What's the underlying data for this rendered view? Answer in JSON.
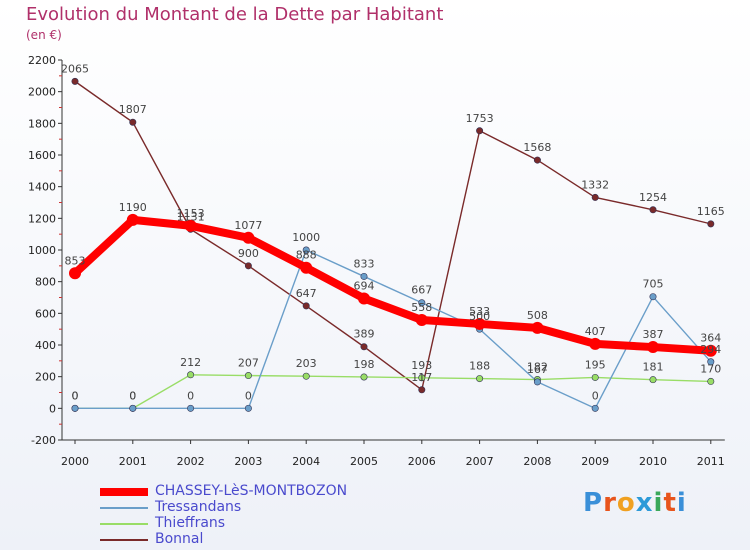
{
  "title": "Evolution du Montant de la Dette par Habitant",
  "subtitle": "(en €)",
  "logo": "Proxiti",
  "chart_data": {
    "type": "line",
    "categories": [
      "2000",
      "2001",
      "2002",
      "2003",
      "2004",
      "2005",
      "2006",
      "2007",
      "2008",
      "2009",
      "2010",
      "2011"
    ],
    "ylim": [
      -200,
      2200
    ],
    "yticks": [
      -200,
      0,
      200,
      400,
      600,
      800,
      1000,
      1200,
      1400,
      1600,
      1800,
      2000,
      2200
    ],
    "grid": false,
    "legend_position": "bottom-left",
    "series": [
      {
        "name": "CHASSEY-LèS-MONTBOZON",
        "color": "#ff0000",
        "values": [
          853,
          1190,
          1153,
          1077,
          888,
          694,
          558,
          533,
          508,
          407,
          387,
          364
        ]
      },
      {
        "name": "Tressandans",
        "color": "#6a9ec9",
        "values": [
          0,
          0,
          0,
          0,
          1000,
          833,
          667,
          500,
          167,
          0,
          705,
          294
        ]
      },
      {
        "name": "Thieffrans",
        "color": "#99dd66",
        "values": [
          0,
          0,
          212,
          207,
          203,
          198,
          193,
          188,
          182,
          195,
          181,
          170
        ]
      },
      {
        "name": "Bonnal",
        "color": "#7a2a2a",
        "values": [
          2065,
          1807,
          1131,
          900,
          647,
          389,
          117,
          1753,
          1568,
          1332,
          1254,
          1165
        ]
      }
    ]
  }
}
